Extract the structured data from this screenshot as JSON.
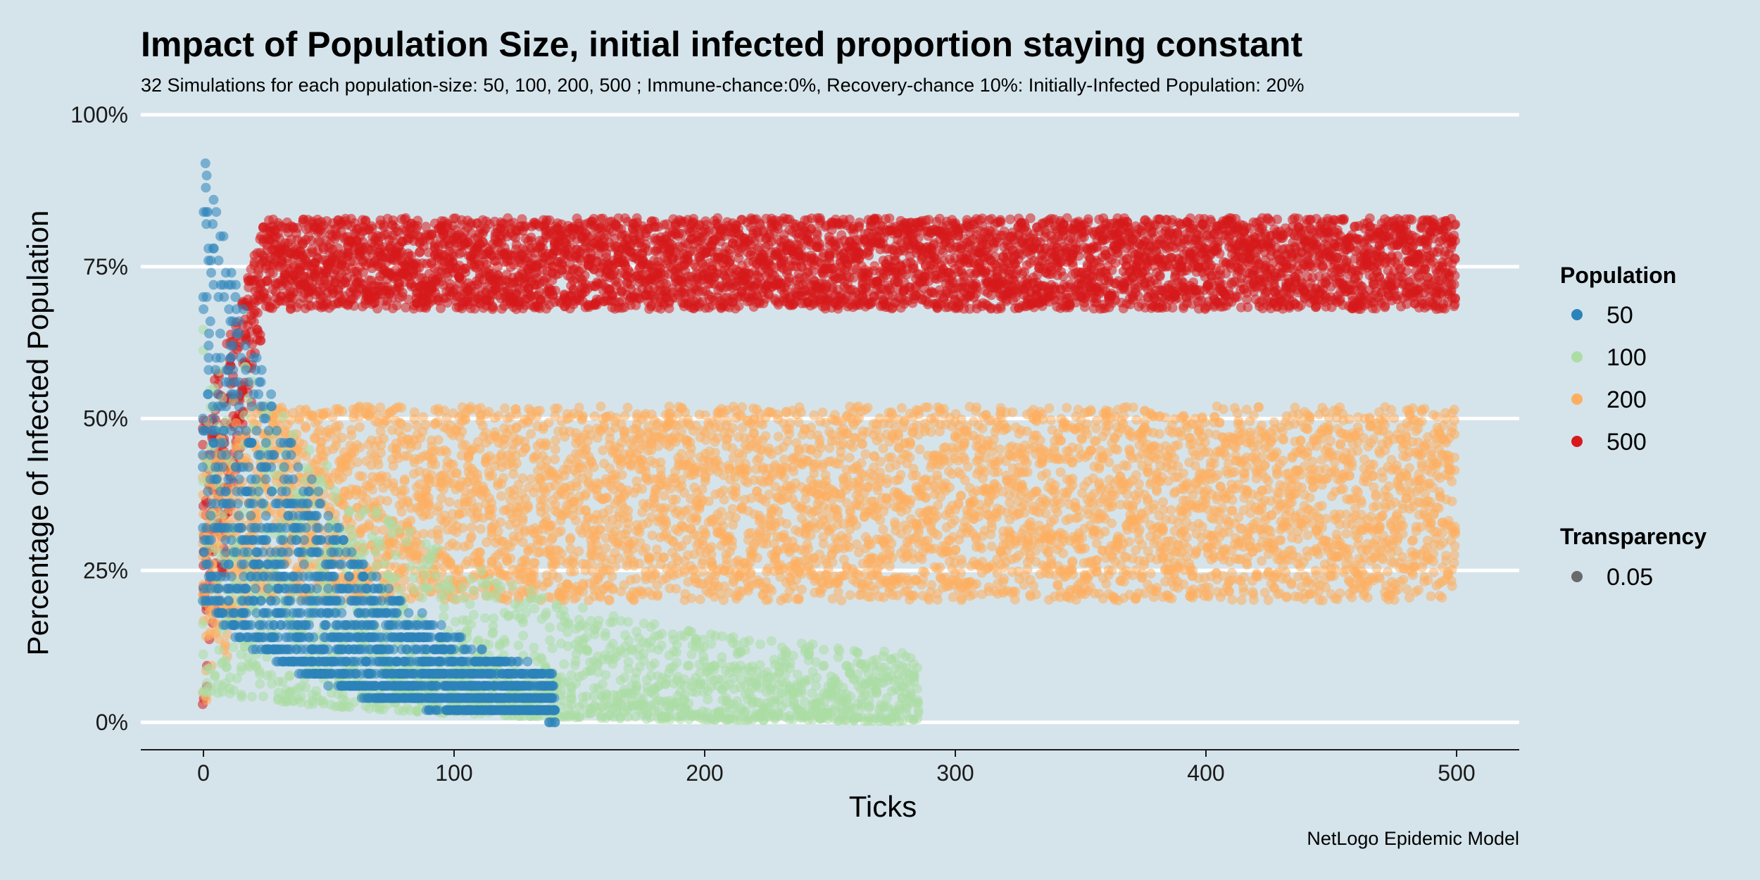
{
  "chart_data": {
    "type": "scatter",
    "title": "Impact of Population Size, initial infected proportion staying constant",
    "subtitle": "32 Simulations for each population-size: 50, 100, 200, 500 ; Immune-chance:0%, Recovery-chance 10%: Initially-Infected Population: 20%",
    "xlabel": "Ticks",
    "ylabel": "Percentage of Infected Population",
    "caption": "NetLogo Epidemic Model",
    "xlim": [
      -25,
      525
    ],
    "ylim": [
      0,
      100
    ],
    "x_ticks": [
      0,
      100,
      200,
      300,
      400,
      500
    ],
    "x_tick_labels": [
      "0",
      "100",
      "200",
      "300",
      "400",
      "500"
    ],
    "y_ticks": [
      0,
      25,
      50,
      75,
      100
    ],
    "y_tick_labels": [
      "0%",
      "25%",
      "50%",
      "75%",
      "100%"
    ],
    "legend": {
      "position": "right",
      "population_title": "Population",
      "transparency_title": "Transparency",
      "transparency_value": "0.05"
    },
    "series": [
      {
        "name": "50",
        "color": "#2b83ba",
        "x_range": [
          0,
          140
        ],
        "start_pct": [
          20,
          96
        ],
        "peak_tick": 0,
        "plateau_pct": [
          0,
          4
        ],
        "decay_ticks": 45,
        "note": "starts spread 20-96%, collapses to 0% by ~140 ticks"
      },
      {
        "name": "100",
        "color": "#abdda4",
        "x_range": [
          0,
          285
        ],
        "start_pct": [
          5,
          70
        ],
        "peak_tick": 0,
        "plateau_pct": [
          0,
          10
        ],
        "decay_ticks": 80,
        "note": "decays to 0-10%, extinct by ~285 ticks"
      },
      {
        "name": "200",
        "color": "#fdae61",
        "x_range": [
          0,
          500
        ],
        "start_pct": [
          2,
          45
        ],
        "peak_tick": 20,
        "plateau_pct": [
          20,
          52
        ],
        "decay_ticks": 0,
        "note": "stabilizes around 25-50%"
      },
      {
        "name": "500",
        "color": "#d7191c",
        "x_range": [
          0,
          500
        ],
        "start_pct": [
          2,
          50
        ],
        "peak_tick": 25,
        "plateau_pct": [
          68,
          83
        ],
        "decay_ticks": 0,
        "note": "rises to plateau around 70-80%"
      }
    ],
    "transparency_color": "#555555"
  }
}
